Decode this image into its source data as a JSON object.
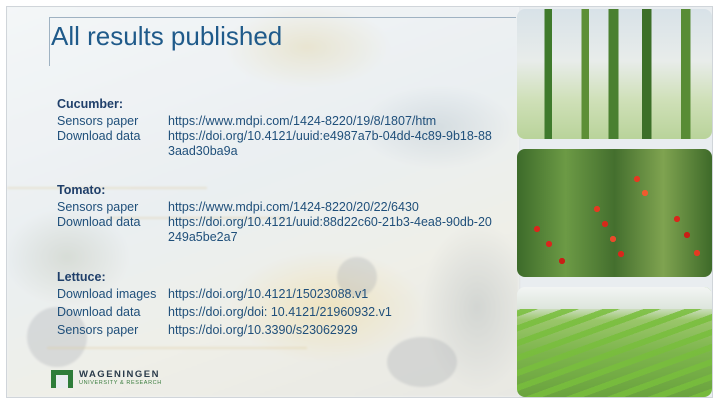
{
  "title": "All results published",
  "sections": [
    {
      "heading": "Cucumber:",
      "rows": [
        {
          "label": "Sensors paper",
          "value": "https://www.mdpi.com/1424-8220/19/8/1807/htm"
        },
        {
          "label": "Download data",
          "value": "https://doi.org/10.4121/uuid:e4987a7b-04dd-4c89-9b18-883aad30ba9a"
        }
      ]
    },
    {
      "heading": "Tomato:",
      "rows": [
        {
          "label": "Sensors paper",
          "value": "https://www.mdpi.com/1424-8220/20/22/6430"
        },
        {
          "label": "Download data",
          "value": "https://doi.org/10.4121/uuid:88d22c60-21b3-4ea8-90db-20249a5be2a7"
        }
      ]
    },
    {
      "heading": "Lettuce:",
      "rows": [
        {
          "label": "Download images",
          "value": "https://doi.org/10.4121/15023088.v1"
        },
        {
          "label": "Download data",
          "value": "https://doi.org/doi: 10.4121/21960932.v1"
        },
        {
          "label": "Sensors paper",
          "value": "https://doi.org/10.3390/s23062929"
        }
      ]
    }
  ],
  "logo": {
    "name": "WAGENINGEN",
    "subtitle": "UNIVERSITY & RESEARCH"
  },
  "colors": {
    "title": "#1f5a8a",
    "text": "#1f4f7a",
    "logo_green": "#2f7d3a"
  },
  "images": [
    "cucumber-photo",
    "tomato-photo",
    "lettuce-photo"
  ]
}
